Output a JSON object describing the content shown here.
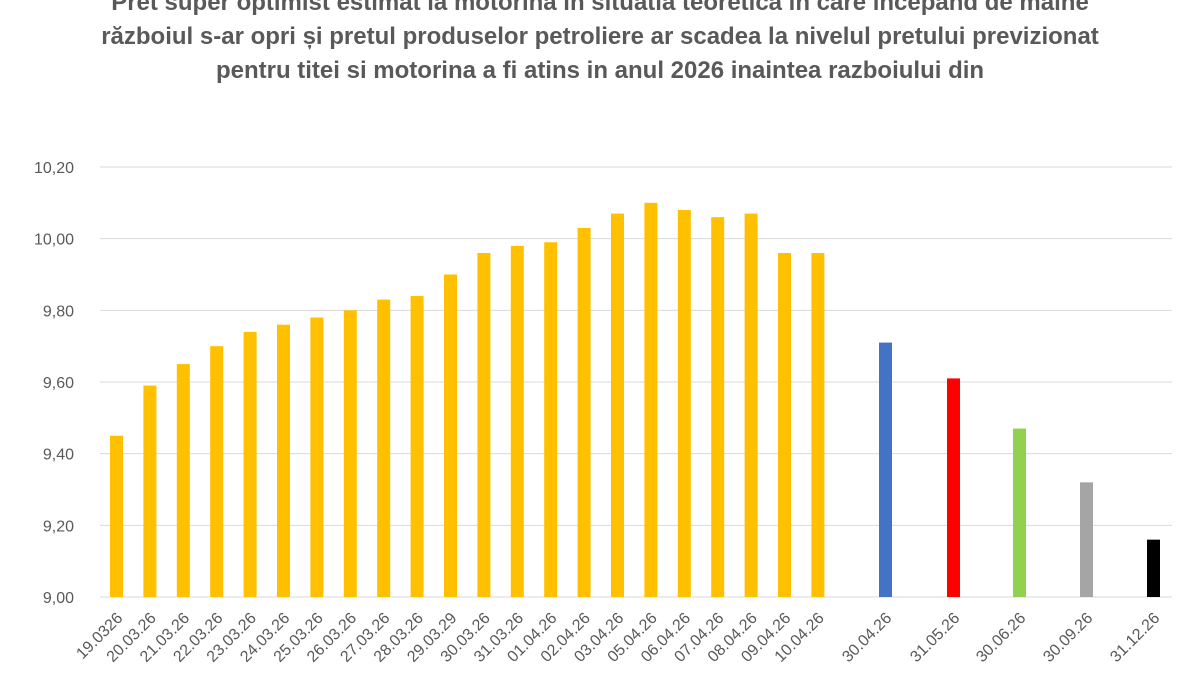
{
  "chart_data": {
    "type": "bar",
    "title": "Pret super optimist estimat la motorina in situatia teoretică in care incepand de maine războiul s-ar opri și pretul produselor petroliere ar scadea la nivelul pretului previzionat pentru titei si motorina a fi atins in anul 2026 inaintea razboiului din",
    "xlabel": "",
    "ylabel": "",
    "ylim": [
      9.0,
      10.2
    ],
    "yticks": [
      "9,00",
      "9,20",
      "9,40",
      "9,60",
      "9,80",
      "10,00",
      "10,20"
    ],
    "grid": true,
    "categories": [
      "19.0326",
      "20.03.26",
      "21.03.26",
      "22.03.26",
      "23.03.26",
      "24.03.26",
      "25.03.26",
      "26.03.26",
      "27.03.26",
      "28.03.26",
      "29.03.29",
      "30.03.26",
      "31.03.26",
      "01.04.26",
      "02.04.26",
      "03.04.26",
      "05.04.26",
      "06.04.26",
      "07.04.26",
      "08.04.26",
      "09.04.26",
      "10.04.26",
      "30.04.26",
      "31.05.26",
      "30.06.26",
      "30.09.26",
      "31.12.26"
    ],
    "values": [
      9.45,
      9.59,
      9.65,
      9.7,
      9.74,
      9.76,
      9.78,
      9.8,
      9.83,
      9.84,
      9.9,
      9.96,
      9.98,
      9.99,
      10.03,
      10.07,
      10.1,
      10.08,
      10.06,
      10.07,
      9.96,
      9.96,
      9.71,
      9.61,
      9.47,
      9.32,
      9.16
    ],
    "colors": [
      "#FFC000",
      "#FFC000",
      "#FFC000",
      "#FFC000",
      "#FFC000",
      "#FFC000",
      "#FFC000",
      "#FFC000",
      "#FFC000",
      "#FFC000",
      "#FFC000",
      "#FFC000",
      "#FFC000",
      "#FFC000",
      "#FFC000",
      "#FFC000",
      "#FFC000",
      "#FFC000",
      "#FFC000",
      "#FFC000",
      "#FFC000",
      "#FFC000",
      "#4472C4",
      "#FF0000",
      "#92D050",
      "#A5A5A5",
      "#000000"
    ]
  }
}
